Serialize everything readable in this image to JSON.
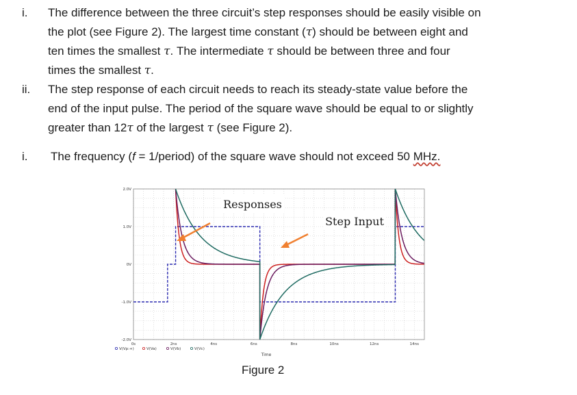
{
  "items": [
    {
      "marker": "i.",
      "lines": [
        "The difference between the three circuit’s step responses should be easily visible on",
        "the plot (see Figure 2).  The largest time constant (τ) should be between eight and",
        "ten times the smallest τ.  The intermediate τ should be between three and four",
        "times the smallest τ."
      ]
    },
    {
      "marker": "ii.",
      "lines": [
        "The step response of each circuit needs to reach its steady-state value before the",
        "end of the input pulse.  The period of the square wave should be equal to or slightly",
        "greater than 12τ of the largest τ (see Figure 2)."
      ]
    },
    {
      "marker": "i.",
      "lines": [
        "The frequency (f = 1/period) of the square wave should not exceed 50 MHz."
      ]
    }
  ],
  "figure": {
    "caption": "Figure 2",
    "label_responses": "Responses",
    "label_step_input": "Step Input",
    "chart_data": {
      "type": "line",
      "x_ticks": [
        "0s",
        "2ns",
        "4ns",
        "6ns",
        "8ns",
        "10ns",
        "12ns",
        "14ns"
      ],
      "y_ticks": [
        "2.0V",
        "1.0V",
        "0V",
        "-1.0V",
        "-2.0V"
      ],
      "xlabel": "Time",
      "legend": [
        "V(Vp:+)",
        "V(Va)",
        "V(Vb)",
        "V(Vc)"
      ],
      "colors": {
        "input": "#2b2bb0",
        "a": "#cc1f1f",
        "b": "#6a1b5e",
        "c": "#1f6b62",
        "arrow": "#f08030"
      }
    }
  }
}
